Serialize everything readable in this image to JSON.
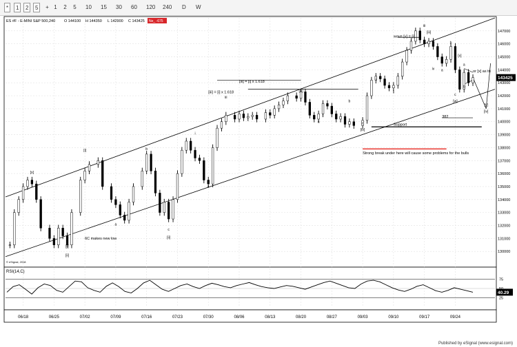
{
  "toolbar": {
    "items": [
      "1",
      "2",
      "5",
      "10",
      "15",
      "30",
      "60",
      "120",
      "240",
      "D",
      "W"
    ],
    "special": [
      "*",
      "+"
    ]
  },
  "header": {
    "symbol": "ES #F - E-MINI S&P 500,240",
    "open": "O 144100",
    "high": "H 144350",
    "low": "L 142900",
    "close": "C 143425",
    "change": "Ne_ -675"
  },
  "footer": {
    "text": "Published by eSignal (www.esignal.com)"
  },
  "copyright": "© eSignal, 2018",
  "annotations": [
    {
      "text": "wave [v] = [i]",
      "x": "09/10",
      "y": 1465
    },
    {
      "text": "[iii] = [i] x 1.618",
      "x": "08/06",
      "y": 1430
    },
    {
      "text": "[iii] = [i] x 1.618",
      "x": "07/30",
      "y": 1422
    },
    {
      "text": "or [x] as tri",
      "x": "09/28",
      "y": 1438
    },
    {
      "text": "Support",
      "x": "09/10",
      "y": 1397
    },
    {
      "text": "382",
      "x": "09/21",
      "y": 1403
    },
    {
      "text": "Strong break under here will cause some problems for the bulls",
      "x": "09/03",
      "y": 1375
    },
    {
      "text": "6C makes new low",
      "x": "07/02",
      "y": 1309
    }
  ],
  "wave_labels": [
    {
      "text": "[x]",
      "x": "06/20",
      "y": 1360
    },
    {
      "text": "[y]",
      "x": "06/28",
      "y": 1303
    },
    {
      "text": "[ii]",
      "x": "06/28",
      "y": 1296
    },
    {
      "text": "[i]",
      "x": "07/02",
      "y": 1377
    },
    {
      "text": "a",
      "x": "07/09",
      "y": 1320
    },
    {
      "text": "b",
      "x": "07/16",
      "y": 1378
    },
    {
      "text": "c",
      "x": "07/21",
      "y": 1316
    },
    {
      "text": "[ii]",
      "x": "07/21",
      "y": 1310
    },
    {
      "text": "i",
      "x": "07/27",
      "y": 1390
    },
    {
      "text": "ii",
      "x": "07/30",
      "y": 1349
    },
    {
      "text": "iii",
      "x": "08/03",
      "y": 1418
    },
    {
      "text": "[iii]",
      "x": "08/20",
      "y": 1423
    },
    {
      "text": "a",
      "x": "08/24",
      "y": 1399
    },
    {
      "text": "b",
      "x": "08/31",
      "y": 1415
    },
    {
      "text": "c",
      "x": "09/03",
      "y": 1398
    },
    {
      "text": "[iv]",
      "x": "09/03",
      "y": 1393
    },
    {
      "text": "i",
      "x": "09/06",
      "y": 1432
    },
    {
      "text": "ii",
      "x": "09/10",
      "y": 1422
    },
    {
      "text": "iii",
      "x": "09/17",
      "y": 1473
    },
    {
      "text": "[iii]",
      "x": "09/18",
      "y": 1468
    },
    {
      "text": "iv",
      "x": "09/19",
      "y": 1440
    },
    {
      "text": "a",
      "x": "09/21",
      "y": 1439
    },
    {
      "text": "b",
      "x": "09/23",
      "y": 1460
    },
    {
      "text": "c",
      "x": "09/24",
      "y": 1420
    },
    {
      "text": "[w]",
      "x": "09/24",
      "y": 1415
    },
    {
      "text": "[x]",
      "x": "09/25",
      "y": 1450
    },
    {
      "text": "a",
      "x": "09/26",
      "y": 1443
    },
    {
      "text": "b",
      "x": "09/26",
      "y": 1426
    },
    {
      "text": "c",
      "x": "09/27",
      "y": 1434
    },
    {
      "text": "[y]",
      "x": "10/01",
      "y": 1412
    },
    {
      "text": "[iv]",
      "x": "10/01",
      "y": 1407
    }
  ],
  "chart_data": {
    "type": "candlestick",
    "title": "ES #F - E-MINI S&P 500,240",
    "x_dates": [
      "06/18",
      "06/25",
      "07/02",
      "07/09",
      "07/16",
      "07/23",
      "07/30",
      "08/06",
      "08/13",
      "08/20",
      "08/27",
      "09/03",
      "09/10",
      "09/17",
      "09/24"
    ],
    "price_axis": {
      "min": 1290,
      "max": 1480,
      "ticks": [
        130000,
        131000,
        132000,
        133000,
        134000,
        135000,
        136000,
        137000,
        138000,
        139000,
        140000,
        141000,
        142000,
        143000,
        144000,
        145000,
        146000,
        147000
      ]
    },
    "last_price_label": "143425",
    "price_series": [
      {
        "date": "06/15",
        "close": 1305
      },
      {
        "date": "06/16",
        "close": 1330
      },
      {
        "date": "06/17",
        "close": 1340
      },
      {
        "date": "06/18",
        "close": 1350
      },
      {
        "date": "06/19",
        "close": 1355
      },
      {
        "date": "06/20",
        "close": 1352
      },
      {
        "date": "06/21",
        "close": 1340
      },
      {
        "date": "06/22",
        "close": 1318
      },
      {
        "date": "06/24",
        "close": 1310
      },
      {
        "date": "06/25",
        "close": 1305
      },
      {
        "date": "06/26",
        "close": 1318
      },
      {
        "date": "06/27",
        "close": 1312
      },
      {
        "date": "06/28",
        "close": 1305
      },
      {
        "date": "06/29",
        "close": 1330
      },
      {
        "date": "07/01",
        "close": 1355
      },
      {
        "date": "07/02",
        "close": 1362
      },
      {
        "date": "07/03",
        "close": 1367
      },
      {
        "date": "07/05",
        "close": 1370
      },
      {
        "date": "07/06",
        "close": 1350
      },
      {
        "date": "07/08",
        "close": 1340
      },
      {
        "date": "07/09",
        "close": 1336
      },
      {
        "date": "07/10",
        "close": 1328
      },
      {
        "date": "07/11",
        "close": 1324
      },
      {
        "date": "07/12",
        "close": 1338
      },
      {
        "date": "07/13",
        "close": 1350
      },
      {
        "date": "07/15",
        "close": 1362
      },
      {
        "date": "07/16",
        "close": 1375
      },
      {
        "date": "07/17",
        "close": 1362
      },
      {
        "date": "07/18",
        "close": 1345
      },
      {
        "date": "07/19",
        "close": 1330
      },
      {
        "date": "07/20",
        "close": 1338
      },
      {
        "date": "07/21",
        "close": 1325
      },
      {
        "date": "07/22",
        "close": 1340
      },
      {
        "date": "07/23",
        "close": 1360
      },
      {
        "date": "07/24",
        "close": 1378
      },
      {
        "date": "07/25",
        "close": 1385
      },
      {
        "date": "07/26",
        "close": 1378
      },
      {
        "date": "07/27",
        "close": 1372
      },
      {
        "date": "07/28",
        "close": 1370
      },
      {
        "date": "07/29",
        "close": 1355
      },
      {
        "date": "07/30",
        "close": 1352
      },
      {
        "date": "07/31",
        "close": 1380
      },
      {
        "date": "08/01",
        "close": 1395
      },
      {
        "date": "08/02",
        "close": 1400
      },
      {
        "date": "08/03",
        "close": 1405
      },
      {
        "date": "08/05",
        "close": 1402
      },
      {
        "date": "08/06",
        "close": 1406
      },
      {
        "date": "08/07",
        "close": 1403
      },
      {
        "date": "08/08",
        "close": 1404
      },
      {
        "date": "08/09",
        "close": 1405
      },
      {
        "date": "08/10",
        "close": 1402
      },
      {
        "date": "08/12",
        "close": 1407
      },
      {
        "date": "08/13",
        "close": 1405
      },
      {
        "date": "08/14",
        "close": 1410
      },
      {
        "date": "08/15",
        "close": 1413
      },
      {
        "date": "08/16",
        "close": 1416
      },
      {
        "date": "08/17",
        "close": 1420
      },
      {
        "date": "08/19",
        "close": 1418
      },
      {
        "date": "08/20",
        "close": 1423
      },
      {
        "date": "08/21",
        "close": 1415
      },
      {
        "date": "08/22",
        "close": 1405
      },
      {
        "date": "08/23",
        "close": 1402
      },
      {
        "date": "08/24",
        "close": 1406
      },
      {
        "date": "08/25",
        "close": 1414
      },
      {
        "date": "08/26",
        "close": 1412
      },
      {
        "date": "08/27",
        "close": 1406
      },
      {
        "date": "08/28",
        "close": 1402
      },
      {
        "date": "08/29",
        "close": 1404
      },
      {
        "date": "08/30",
        "close": 1398
      },
      {
        "date": "08/31",
        "close": 1400
      },
      {
        "date": "09/01",
        "close": 1397
      },
      {
        "date": "09/03",
        "close": 1401
      },
      {
        "date": "09/04",
        "close": 1420
      },
      {
        "date": "09/05",
        "close": 1432
      },
      {
        "date": "09/06",
        "close": 1435
      },
      {
        "date": "09/07",
        "close": 1433
      },
      {
        "date": "09/08",
        "close": 1428
      },
      {
        "date": "09/09",
        "close": 1426
      },
      {
        "date": "09/10",
        "close": 1428
      },
      {
        "date": "09/11",
        "close": 1435
      },
      {
        "date": "09/12",
        "close": 1446
      },
      {
        "date": "09/13",
        "close": 1455
      },
      {
        "date": "09/14",
        "close": 1462
      },
      {
        "date": "09/15",
        "close": 1470
      },
      {
        "date": "09/16",
        "close": 1463
      },
      {
        "date": "09/17",
        "close": 1460
      },
      {
        "date": "09/18",
        "close": 1462
      },
      {
        "date": "09/19",
        "close": 1458
      },
      {
        "date": "09/20",
        "close": 1450
      },
      {
        "date": "09/21",
        "close": 1445
      },
      {
        "date": "09/22",
        "close": 1448
      },
      {
        "date": "09/23",
        "close": 1458
      },
      {
        "date": "09/24",
        "close": 1440
      },
      {
        "date": "09/25",
        "close": 1425
      },
      {
        "date": "09/26",
        "close": 1438
      },
      {
        "date": "09/27",
        "close": 1430
      },
      {
        "date": "09/28",
        "close": 1434
      }
    ],
    "rsi_label": "RSI(14,C)",
    "rsi_axis": {
      "ticks": [
        75,
        50,
        25
      ],
      "last": "40.29"
    },
    "rsi_series": [
      40,
      55,
      60,
      48,
      35,
      52,
      62,
      58,
      45,
      40,
      55,
      70,
      68,
      52,
      45,
      40,
      56,
      65,
      55,
      42,
      38,
      50,
      65,
      72,
      60,
      48,
      42,
      50,
      58,
      62,
      55,
      50,
      58,
      64,
      60,
      55,
      52,
      58,
      62,
      66,
      60,
      55,
      52,
      50,
      54,
      58,
      56,
      52,
      48,
      54,
      60,
      66,
      70,
      64,
      58,
      52,
      50,
      62,
      70,
      72,
      68,
      60,
      52,
      46,
      42,
      48,
      56,
      60,
      52,
      44,
      40,
      45,
      52,
      48,
      44,
      40
    ]
  }
}
